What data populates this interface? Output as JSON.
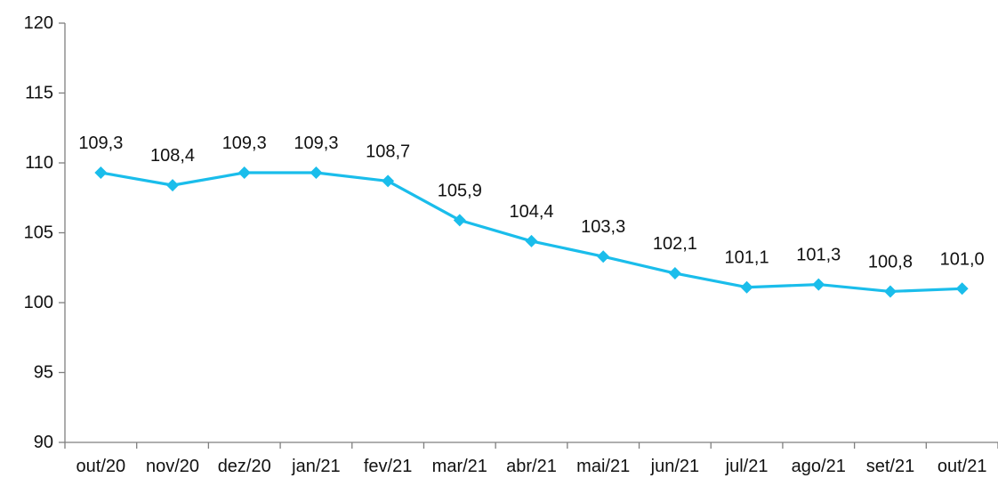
{
  "chart_data": {
    "type": "line",
    "title": "",
    "xlabel": "",
    "ylabel": "",
    "ylim": [
      90,
      120
    ],
    "yticks": [
      "90",
      "95",
      "100",
      "105",
      "110",
      "115",
      "120"
    ],
    "grid": false,
    "legend": "none",
    "categories": [
      "out/20",
      "nov/20",
      "dez/20",
      "jan/21",
      "fev/21",
      "mar/21",
      "abr/21",
      "mai/21",
      "jun/21",
      "jul/21",
      "ago/21",
      "set/21",
      "out/21"
    ],
    "series": [
      {
        "values": [
          109.3,
          108.4,
          109.3,
          109.3,
          108.7,
          105.9,
          104.4,
          103.3,
          102.1,
          101.1,
          101.3,
          100.8,
          101.0
        ],
        "labels": [
          "109,3",
          "108,4",
          "109,3",
          "109,3",
          "108,7",
          "105,9",
          "104,4",
          "103,3",
          "102,1",
          "101,1",
          "101,3",
          "100,8",
          "101,0"
        ],
        "color": "#1ABDEB"
      }
    ],
    "axis_color": "#7f7f7f"
  }
}
